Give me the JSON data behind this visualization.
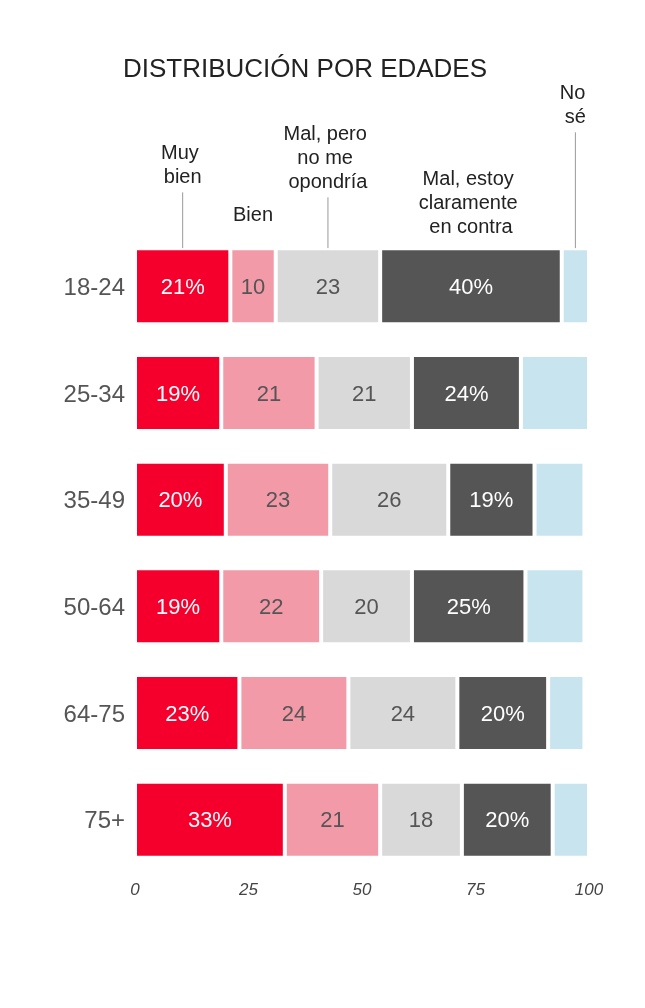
{
  "chart_data": {
    "type": "bar",
    "title": "DISTRIBUCIÓN POR EDADES",
    "orientation": "horizontal",
    "stacked": true,
    "categories": [
      "18-24",
      "25-34",
      "35-49",
      "50-64",
      "64-75",
      "75+"
    ],
    "series": [
      {
        "name": "Muy bien",
        "color": "#f5002d",
        "values": [
          21,
          19,
          20,
          19,
          23,
          33
        ],
        "value_labels": [
          "21%",
          "19%",
          "20%",
          "19%",
          "23%",
          "33%"
        ]
      },
      {
        "name": "Bien",
        "color": "#f29aa8",
        "values": [
          10,
          21,
          23,
          22,
          24,
          21
        ],
        "value_labels": [
          "10",
          "21",
          "23",
          "22",
          "24",
          "21"
        ]
      },
      {
        "name": "Mal, pero no me opondría",
        "color": "#d9d9d9",
        "values": [
          23,
          21,
          26,
          20,
          24,
          18
        ],
        "value_labels": [
          "23",
          "21",
          "26",
          "20",
          "24",
          "18"
        ]
      },
      {
        "name": "Mal, estoy claramente en contra",
        "color": "#555555",
        "values": [
          40,
          24,
          19,
          25,
          20,
          20
        ],
        "value_labels": [
          "40%",
          "24%",
          "19%",
          "25%",
          "20%",
          "20%"
        ]
      },
      {
        "name": "No sé",
        "color": "#c8e4ee",
        "values": [
          6,
          15,
          11,
          13,
          8,
          8
        ],
        "value_labels": [
          null,
          null,
          null,
          null,
          null,
          null
        ]
      }
    ],
    "xlim": [
      0,
      100
    ],
    "xticks": [
      0,
      25,
      50,
      75,
      100
    ],
    "grid": false,
    "legend": false
  }
}
